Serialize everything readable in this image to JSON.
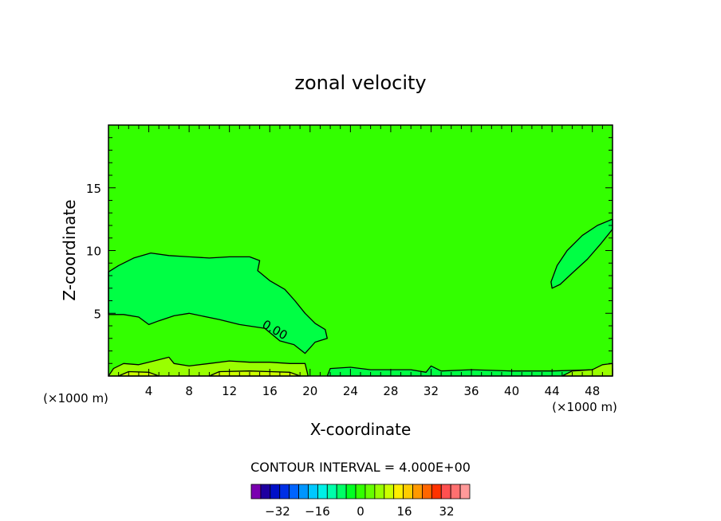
{
  "chart_data": {
    "type": "heatmap",
    "title": "zonal velocity",
    "xlabel": "X-coordinate",
    "ylabel": "Z-coordinate",
    "x_unit_left": "(×1000 m)",
    "x_unit_right": "(×1000 m)",
    "xlim": [
      0,
      50
    ],
    "ylim": [
      0,
      20
    ],
    "xticks": [
      4,
      8,
      12,
      16,
      20,
      24,
      28,
      32,
      36,
      40,
      44,
      48
    ],
    "yticks": [
      5,
      10,
      15
    ],
    "contour_label": "0.00",
    "contour_interval_text": "CONTOUR INTERVAL = 4.000E+00",
    "background_field_color": "#33ff00",
    "regions": [
      {
        "color": "#00ff44",
        "level": -4,
        "points": [
          [
            0,
            8.3
          ],
          [
            1,
            8.8
          ],
          [
            2.5,
            9.4
          ],
          [
            4.2,
            9.8
          ],
          [
            6,
            9.6
          ],
          [
            8,
            9.5
          ],
          [
            10,
            9.4
          ],
          [
            12,
            9.5
          ],
          [
            14,
            9.5
          ],
          [
            15,
            9.2
          ],
          [
            14.8,
            8.4
          ],
          [
            16,
            7.6
          ],
          [
            17.5,
            6.9
          ],
          [
            18.5,
            6.0
          ],
          [
            19.5,
            5.0
          ],
          [
            20.5,
            4.2
          ],
          [
            21.5,
            3.7
          ],
          [
            21.7,
            3.0
          ],
          [
            20.5,
            2.7
          ],
          [
            19.5,
            1.8
          ],
          [
            18.4,
            2.5
          ],
          [
            17,
            2.8
          ],
          [
            15.5,
            3.8
          ],
          [
            13,
            4.1
          ],
          [
            11,
            4.5
          ],
          [
            8,
            5.0
          ],
          [
            6.5,
            4.8
          ],
          [
            5,
            4.4
          ],
          [
            4,
            4.1
          ],
          [
            3,
            4.7
          ],
          [
            1.5,
            4.9
          ],
          [
            0,
            4.9
          ]
        ]
      },
      {
        "color": "#00ff44",
        "level": -4,
        "points": [
          [
            43.9,
            7.5
          ],
          [
            44.5,
            8.8
          ],
          [
            45.5,
            10.0
          ],
          [
            47,
            11.2
          ],
          [
            48.5,
            12.0
          ],
          [
            50,
            12.5
          ],
          [
            50,
            11.7
          ],
          [
            48.8,
            10.5
          ],
          [
            47.5,
            9.3
          ],
          [
            46,
            8.2
          ],
          [
            44.8,
            7.3
          ],
          [
            44,
            7.0
          ]
        ]
      },
      {
        "color": "#00ff44",
        "level": -4,
        "points": [
          [
            21.7,
            0
          ],
          [
            22,
            0.6
          ],
          [
            24,
            0.7
          ],
          [
            26,
            0.5
          ],
          [
            28,
            0.5
          ],
          [
            30,
            0.5
          ],
          [
            31.5,
            0.3
          ],
          [
            32,
            0.8
          ],
          [
            32.5,
            0.6
          ],
          [
            33,
            0.4
          ],
          [
            36,
            0.5
          ],
          [
            40,
            0.4
          ],
          [
            44,
            0.4
          ],
          [
            48,
            0.5
          ],
          [
            50,
            0.6
          ],
          [
            50,
            0
          ]
        ]
      },
      {
        "color": "#99ff00",
        "level": 4,
        "points": [
          [
            0,
            0
          ],
          [
            0.5,
            0.6
          ],
          [
            1.5,
            1.0
          ],
          [
            3,
            0.9
          ],
          [
            4.5,
            1.2
          ],
          [
            6,
            1.5
          ],
          [
            6.5,
            1.0
          ],
          [
            8,
            0.8
          ],
          [
            10,
            1.0
          ],
          [
            12,
            1.2
          ],
          [
            14,
            1.1
          ],
          [
            16,
            1.1
          ],
          [
            18,
            1.0
          ],
          [
            19.5,
            1.0
          ],
          [
            19.8,
            0
          ]
        ]
      },
      {
        "color": "#99ff00",
        "level": 4,
        "points": [
          [
            45,
            0
          ],
          [
            46,
            0.4
          ],
          [
            48,
            0.5
          ],
          [
            49,
            0.9
          ],
          [
            50,
            1.0
          ],
          [
            50,
            0
          ]
        ]
      },
      {
        "color": "#ccff00",
        "level": 8,
        "points": [
          [
            10,
            0
          ],
          [
            11,
            0.35
          ],
          [
            14,
            0.4
          ],
          [
            16,
            0.35
          ],
          [
            18,
            0.3
          ],
          [
            19,
            0
          ]
        ]
      },
      {
        "color": "#ccff00",
        "level": 8,
        "points": [
          [
            1,
            0
          ],
          [
            2,
            0.35
          ],
          [
            4,
            0.3
          ],
          [
            5,
            0
          ]
        ]
      }
    ],
    "legend_colorbar": {
      "colors": [
        "#7a00b0",
        "#1e00a0",
        "#0010c8",
        "#0030e6",
        "#0064ff",
        "#0096ff",
        "#00c8ff",
        "#00f0e6",
        "#00ffaa",
        "#00ff66",
        "#00ff22",
        "#33ff00",
        "#66ff00",
        "#99ff00",
        "#ccff00",
        "#ffee00",
        "#ffcc00",
        "#ff9900",
        "#ff6600",
        "#ff3300",
        "#ff5050",
        "#ff7070",
        "#ff9999"
      ],
      "tick_labels": [
        "-32",
        "-16",
        "0",
        "16",
        "32"
      ]
    }
  }
}
